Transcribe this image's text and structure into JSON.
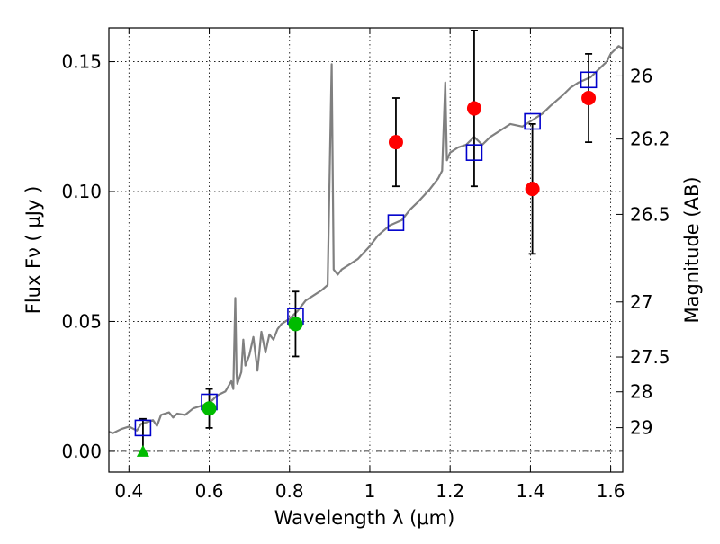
{
  "chart_data": {
    "type": "scatter",
    "xlabel": "Wavelength  λ (μm)",
    "ylabel": "Flux  Fν  ( μJy )",
    "y2label": "Magnitude (AB)",
    "xlim": [
      0.35,
      1.63
    ],
    "ylim": [
      -0.008,
      0.163
    ],
    "grid": true,
    "x_ticks": [
      {
        "value": 0.4,
        "label": "0.4"
      },
      {
        "value": 0.6,
        "label": "0.6"
      },
      {
        "value": 0.8,
        "label": "0.8"
      },
      {
        "value": 1.0,
        "label": "1"
      },
      {
        "value": 1.2,
        "label": "1.2"
      },
      {
        "value": 1.4,
        "label": "1.4"
      },
      {
        "value": 1.6,
        "label": "1.6"
      }
    ],
    "y_ticks": [
      {
        "value": 0.0,
        "label": "0.00"
      },
      {
        "value": 0.05,
        "label": "0.05"
      },
      {
        "value": 0.1,
        "label": "0.10"
      },
      {
        "value": 0.15,
        "label": "0.15"
      }
    ],
    "y2_ticks": [
      {
        "label": "26",
        "flux": 0.1445
      },
      {
        "label": "26.2",
        "flux": 0.1202
      },
      {
        "label": "26.5",
        "flux": 0.0912
      },
      {
        "label": "27",
        "flux": 0.0575
      },
      {
        "label": "27.5",
        "flux": 0.0363
      },
      {
        "label": "28",
        "flux": 0.0229
      },
      {
        "label": "29",
        "flux": 0.0091
      }
    ],
    "series": [
      {
        "name": "template spectrum",
        "kind": "line",
        "color": "#808080",
        "points": [
          [
            0.35,
            0.0075
          ],
          [
            0.36,
            0.007
          ],
          [
            0.38,
            0.0085
          ],
          [
            0.4,
            0.0095
          ],
          [
            0.42,
            0.008
          ],
          [
            0.43,
            0.0105
          ],
          [
            0.45,
            0.0115
          ],
          [
            0.46,
            0.012
          ],
          [
            0.47,
            0.0098
          ],
          [
            0.48,
            0.014
          ],
          [
            0.5,
            0.015
          ],
          [
            0.51,
            0.013
          ],
          [
            0.52,
            0.0145
          ],
          [
            0.54,
            0.014
          ],
          [
            0.56,
            0.0165
          ],
          [
            0.58,
            0.0175
          ],
          [
            0.6,
            0.0185
          ],
          [
            0.62,
            0.0215
          ],
          [
            0.64,
            0.023
          ],
          [
            0.655,
            0.027
          ],
          [
            0.66,
            0.024
          ],
          [
            0.665,
            0.059
          ],
          [
            0.668,
            0.03
          ],
          [
            0.67,
            0.026
          ],
          [
            0.68,
            0.0305
          ],
          [
            0.685,
            0.043
          ],
          [
            0.69,
            0.033
          ],
          [
            0.7,
            0.037
          ],
          [
            0.71,
            0.044
          ],
          [
            0.72,
            0.031
          ],
          [
            0.73,
            0.046
          ],
          [
            0.74,
            0.038
          ],
          [
            0.75,
            0.045
          ],
          [
            0.76,
            0.043
          ],
          [
            0.77,
            0.047
          ],
          [
            0.78,
            0.049
          ],
          [
            0.79,
            0.05
          ],
          [
            0.8,
            0.051
          ],
          [
            0.82,
            0.054
          ],
          [
            0.84,
            0.058
          ],
          [
            0.86,
            0.06
          ],
          [
            0.88,
            0.062
          ],
          [
            0.895,
            0.064
          ],
          [
            0.905,
            0.149
          ],
          [
            0.91,
            0.07
          ],
          [
            0.92,
            0.068
          ],
          [
            0.93,
            0.07
          ],
          [
            0.95,
            0.072
          ],
          [
            0.97,
            0.074
          ],
          [
            1.0,
            0.079
          ],
          [
            1.02,
            0.083
          ],
          [
            1.05,
            0.087
          ],
          [
            1.08,
            0.089
          ],
          [
            1.1,
            0.093
          ],
          [
            1.12,
            0.096
          ],
          [
            1.15,
            0.101
          ],
          [
            1.17,
            0.105
          ],
          [
            1.18,
            0.108
          ],
          [
            1.188,
            0.142
          ],
          [
            1.192,
            0.112
          ],
          [
            1.2,
            0.115
          ],
          [
            1.22,
            0.117
          ],
          [
            1.24,
            0.118
          ],
          [
            1.26,
            0.121
          ],
          [
            1.28,
            0.118
          ],
          [
            1.3,
            0.121
          ],
          [
            1.33,
            0.124
          ],
          [
            1.35,
            0.126
          ],
          [
            1.38,
            0.125
          ],
          [
            1.4,
            0.127
          ],
          [
            1.43,
            0.13
          ],
          [
            1.45,
            0.133
          ],
          [
            1.48,
            0.137
          ],
          [
            1.5,
            0.14
          ],
          [
            1.52,
            0.142
          ],
          [
            1.55,
            0.144
          ],
          [
            1.57,
            0.147
          ],
          [
            1.59,
            0.15
          ],
          [
            1.6,
            0.153
          ],
          [
            1.62,
            0.156
          ],
          [
            1.63,
            0.155
          ]
        ]
      },
      {
        "name": "model photometry",
        "kind": "square",
        "color": "#0000cc",
        "points": [
          [
            0.435,
            0.009
          ],
          [
            0.6,
            0.019
          ],
          [
            0.815,
            0.052
          ],
          [
            1.065,
            0.088
          ],
          [
            1.26,
            0.115
          ],
          [
            1.405,
            0.127
          ],
          [
            1.545,
            0.143
          ]
        ]
      },
      {
        "name": "red detections",
        "kind": "circle",
        "color": "#ff0000",
        "points": [
          {
            "x": 1.065,
            "y": 0.119,
            "err": 0.017
          },
          {
            "x": 1.26,
            "y": 0.132,
            "err": 0.03
          },
          {
            "x": 1.405,
            "y": 0.101,
            "err": 0.025
          },
          {
            "x": 1.545,
            "y": 0.136,
            "err": 0.017
          }
        ]
      },
      {
        "name": "green detections",
        "kind": "circle",
        "color": "#00bb00",
        "points": [
          {
            "x": 0.6,
            "y": 0.0165,
            "err": 0.0075
          },
          {
            "x": 0.815,
            "y": 0.049,
            "err": 0.0125
          }
        ]
      },
      {
        "name": "upper limit",
        "kind": "triangle",
        "color": "#00bb00",
        "points": [
          {
            "x": 0.435,
            "y": 0.0,
            "err_up": 0.0125,
            "err_down": 0.0
          }
        ]
      }
    ],
    "zero_line": 0.0
  }
}
